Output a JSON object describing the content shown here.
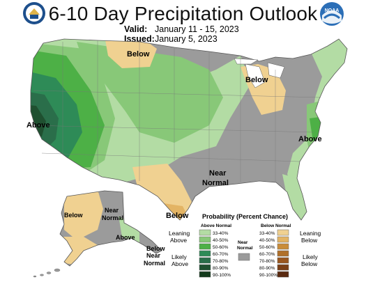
{
  "header": {
    "title": "6-10 Day Precipitation Outlook",
    "valid_label": "Valid:",
    "valid_value": "January 11 - 15, 2023",
    "issued_label": "Issued:",
    "issued_value": "January 5, 2023"
  },
  "logos": {
    "left": "doc-seal-icon",
    "right": "noaa-logo-icon",
    "right_text": "NOAA"
  },
  "map_labels": {
    "above_west": "Above",
    "below_north": "Below",
    "below_lakes": "Below",
    "above_east": "Above",
    "near_normal_center": [
      "Near",
      "Normal"
    ],
    "below_texas": "Below",
    "below_alaska": "Below",
    "near_normal_alaska": [
      "Near",
      "Normal"
    ],
    "above_alaska": "Above",
    "below_aleutian": "Below",
    "near_normal_aleutian": [
      "Near",
      "Normal"
    ]
  },
  "legend": {
    "title": "Probability (Percent Chance)",
    "above_header": "Above Normal",
    "below_header": "Below Normal",
    "near_header": [
      "Near",
      "Normal"
    ],
    "leaning_above": [
      "Leaning",
      "Above"
    ],
    "likely_above": [
      "Likely",
      "Above"
    ],
    "leaning_below": [
      "Leaning",
      "Below"
    ],
    "likely_below": [
      "Likely",
      "Below"
    ],
    "ranges": [
      "33-40%",
      "40-50%",
      "50-60%",
      "60-70%",
      "70-80%",
      "80-90%",
      "90-100%"
    ],
    "above_colors": [
      "#b3dca4",
      "#88c878",
      "#4db046",
      "#2e8b57",
      "#2a6e4a",
      "#1f5030",
      "#133a1c"
    ],
    "below_colors": [
      "#f0d191",
      "#e3b464",
      "#c98d3a",
      "#b0702a",
      "#99561f",
      "#7a3f16",
      "#5a2a10"
    ],
    "near_color": "#9b9b9b"
  }
}
